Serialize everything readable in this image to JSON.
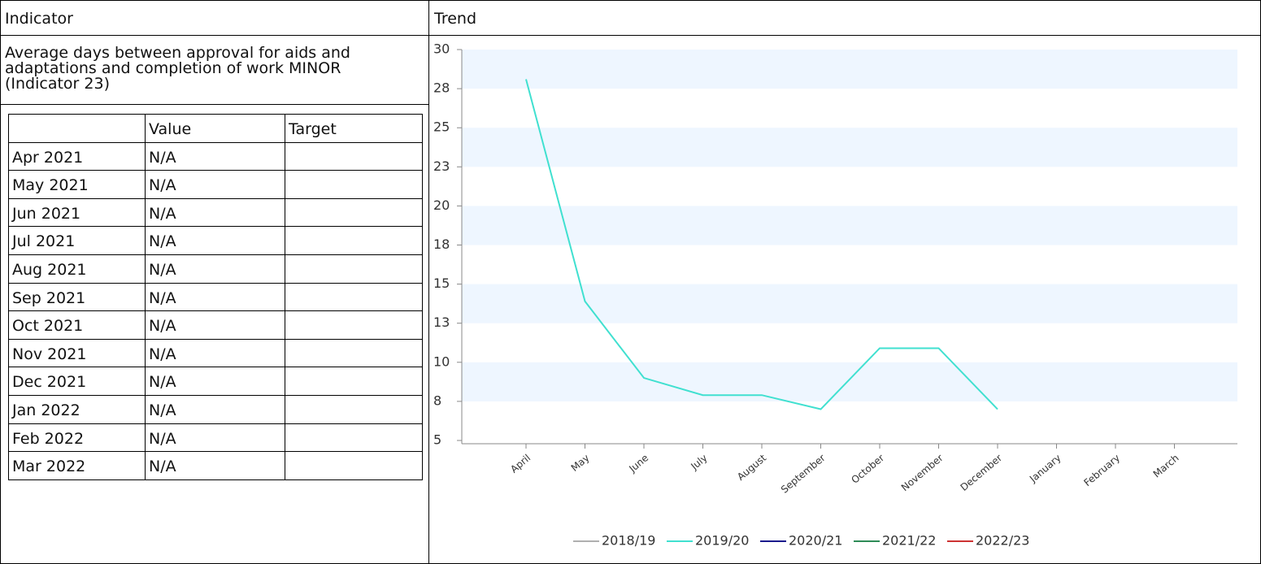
{
  "header": {
    "indicator": "Indicator",
    "trend": "Trend"
  },
  "indicator": {
    "description": "Average days between approval for aids and adaptations and completion of work MINOR (Indicator 23)"
  },
  "table": {
    "columns": [
      "Value",
      "Target"
    ],
    "rows": [
      [
        "Apr 2021",
        "N/A"
      ],
      [
        "May 2021",
        "N/A"
      ],
      [
        "Jun 2021",
        "N/A"
      ],
      [
        "Jul 2021",
        "N/A"
      ],
      [
        "Aug 2021",
        "N/A"
      ],
      [
        "Sep 2021",
        "N/A"
      ],
      [
        "Oct 2021",
        "N/A"
      ],
      [
        "Nov 2021",
        "N/A"
      ],
      [
        "Dec 2021",
        "N/A"
      ],
      [
        "Jan 2022",
        "N/A"
      ],
      [
        "Feb 2022",
        "N/A"
      ],
      [
        "Mar 2022",
        "N/A"
      ]
    ]
  },
  "chart_data": {
    "type": "line",
    "categories": [
      "April",
      "May",
      "June",
      "July",
      "August",
      "September",
      "October",
      "November",
      "December",
      "January",
      "February",
      "March"
    ],
    "ylim": [
      5,
      30
    ],
    "yticks": [
      5,
      {
        "value": 7.5,
        "label": "8"
      },
      10,
      {
        "value": 12.5,
        "label": "13"
      },
      15,
      {
        "value": 17.5,
        "label": "18"
      },
      20,
      {
        "value": 22.5,
        "label": "23"
      },
      25,
      {
        "value": 27.5,
        "label": "28"
      },
      30
    ],
    "grid": "bands",
    "legend": "bottom",
    "series": [
      {
        "name": "2018/19",
        "color": "#b0b0b0",
        "values": [
          null,
          null,
          null,
          null,
          null,
          null,
          null,
          null,
          null,
          null,
          null,
          null
        ]
      },
      {
        "name": "2019/20",
        "color": "#40e0d0",
        "values": [
          28.1,
          13.9,
          9.0,
          7.9,
          7.9,
          7.0,
          10.9,
          10.9,
          7.0,
          null,
          null,
          null
        ]
      },
      {
        "name": "2020/21",
        "color": "#1a1a8c",
        "values": [
          null,
          null,
          null,
          null,
          null,
          null,
          null,
          null,
          null,
          null,
          null,
          null
        ]
      },
      {
        "name": "2021/22",
        "color": "#2e8b57",
        "values": [
          null,
          null,
          null,
          null,
          null,
          null,
          null,
          null,
          null,
          null,
          null,
          null
        ]
      },
      {
        "name": "2022/23",
        "color": "#cd3333",
        "values": [
          null,
          null,
          null,
          null,
          null,
          null,
          null,
          null,
          null,
          null,
          null,
          null
        ]
      }
    ]
  }
}
